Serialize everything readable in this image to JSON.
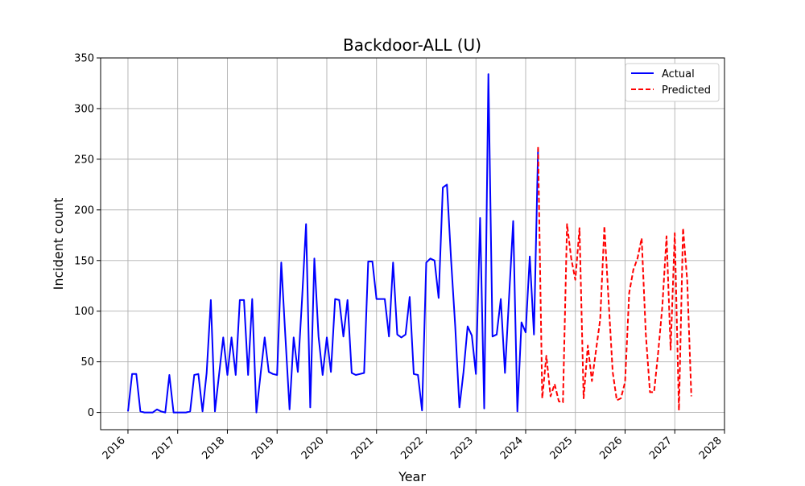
{
  "chart_data": {
    "type": "line",
    "title": "Backdoor-ALL (U)",
    "xlabel": "Year",
    "ylabel": "Incident count",
    "xlim": [
      2015.45,
      2028.0
    ],
    "ylim": [
      -17,
      350
    ],
    "x_ticks": [
      2016,
      2017,
      2018,
      2019,
      2020,
      2021,
      2022,
      2023,
      2024,
      2025,
      2026,
      2027,
      2028
    ],
    "x_tick_labels": [
      "2016",
      "2017",
      "2018",
      "2019",
      "2020",
      "2021",
      "2022",
      "2023",
      "2024",
      "2025",
      "2026",
      "2027",
      "2028"
    ],
    "y_ticks": [
      0,
      50,
      100,
      150,
      200,
      250,
      300,
      350
    ],
    "y_tick_labels": [
      "0",
      "50",
      "100",
      "150",
      "200",
      "250",
      "300",
      "350"
    ],
    "grid": true,
    "legend_position": "top-right",
    "series": [
      {
        "name": "Actual",
        "color": "#0000ff",
        "style": "solid",
        "points": [
          [
            "2016-01",
            1
          ],
          [
            "2016-02",
            38
          ],
          [
            "2016-03",
            38
          ],
          [
            "2016-04",
            1
          ],
          [
            "2016-05",
            0
          ],
          [
            "2016-06",
            0
          ],
          [
            "2016-07",
            0
          ],
          [
            "2016-08",
            3
          ],
          [
            "2016-09",
            1
          ],
          [
            "2016-10",
            0
          ],
          [
            "2016-11",
            37
          ],
          [
            "2016-12",
            0
          ],
          [
            "2017-01",
            0
          ],
          [
            "2017-02",
            0
          ],
          [
            "2017-03",
            0
          ],
          [
            "2017-04",
            1
          ],
          [
            "2017-05",
            37
          ],
          [
            "2017-06",
            38
          ],
          [
            "2017-07",
            1
          ],
          [
            "2017-08",
            39
          ],
          [
            "2017-09",
            111
          ],
          [
            "2017-10",
            1
          ],
          [
            "2017-11",
            38
          ],
          [
            "2017-12",
            74
          ],
          [
            "2018-01",
            37
          ],
          [
            "2018-02",
            74
          ],
          [
            "2018-03",
            37
          ],
          [
            "2018-04",
            111
          ],
          [
            "2018-05",
            111
          ],
          [
            "2018-06",
            37
          ],
          [
            "2018-07",
            112
          ],
          [
            "2018-08",
            0
          ],
          [
            "2018-09",
            37
          ],
          [
            "2018-10",
            74
          ],
          [
            "2018-11",
            40
          ],
          [
            "2018-12",
            38
          ],
          [
            "2019-01",
            37
          ],
          [
            "2019-02",
            148
          ],
          [
            "2019-03",
            75
          ],
          [
            "2019-04",
            3
          ],
          [
            "2019-05",
            74
          ],
          [
            "2019-06",
            40
          ],
          [
            "2019-07",
            110
          ],
          [
            "2019-08",
            186
          ],
          [
            "2019-09",
            5
          ],
          [
            "2019-10",
            152
          ],
          [
            "2019-11",
            75
          ],
          [
            "2019-12",
            37
          ],
          [
            "2020-01",
            74
          ],
          [
            "2020-02",
            40
          ],
          [
            "2020-03",
            112
          ],
          [
            "2020-04",
            111
          ],
          [
            "2020-05",
            75
          ],
          [
            "2020-06",
            111
          ],
          [
            "2020-07",
            39
          ],
          [
            "2020-08",
            37
          ],
          [
            "2020-09",
            38
          ],
          [
            "2020-10",
            39
          ],
          [
            "2020-11",
            149
          ],
          [
            "2020-12",
            149
          ],
          [
            "2021-01",
            112
          ],
          [
            "2021-02",
            112
          ],
          [
            "2021-03",
            112
          ],
          [
            "2021-04",
            75
          ],
          [
            "2021-05",
            148
          ],
          [
            "2021-06",
            77
          ],
          [
            "2021-07",
            74
          ],
          [
            "2021-08",
            77
          ],
          [
            "2021-09",
            114
          ],
          [
            "2021-10",
            38
          ],
          [
            "2021-11",
            37
          ],
          [
            "2021-12",
            2
          ],
          [
            "2022-01",
            148
          ],
          [
            "2022-02",
            152
          ],
          [
            "2022-03",
            150
          ],
          [
            "2022-04",
            113
          ],
          [
            "2022-05",
            222
          ],
          [
            "2022-06",
            225
          ],
          [
            "2022-07",
            150
          ],
          [
            "2022-08",
            85
          ],
          [
            "2022-09",
            5
          ],
          [
            "2022-10",
            40
          ],
          [
            "2022-11",
            85
          ],
          [
            "2022-12",
            76
          ],
          [
            "2023-01",
            38
          ],
          [
            "2023-02",
            192
          ],
          [
            "2023-03",
            4
          ],
          [
            "2023-04",
            334
          ],
          [
            "2023-05",
            75
          ],
          [
            "2023-06",
            77
          ],
          [
            "2023-07",
            112
          ],
          [
            "2023-08",
            39
          ],
          [
            "2023-09",
            114
          ],
          [
            "2023-10",
            189
          ],
          [
            "2023-11",
            1
          ],
          [
            "2023-12",
            89
          ],
          [
            "2024-01",
            79
          ],
          [
            "2024-02",
            154
          ],
          [
            "2024-03",
            77
          ],
          [
            "2024-04",
            260
          ]
        ]
      },
      {
        "name": "Predicted",
        "color": "#ff0000",
        "style": "dashed",
        "points": [
          [
            "2024-04",
            262
          ],
          [
            "2024-05",
            14
          ],
          [
            "2024-06",
            56
          ],
          [
            "2024-07",
            16
          ],
          [
            "2024-08",
            28
          ],
          [
            "2024-09",
            11
          ],
          [
            "2024-10",
            10
          ],
          [
            "2024-11",
            186
          ],
          [
            "2024-12",
            152
          ],
          [
            "2025-01",
            131
          ],
          [
            "2025-02",
            182
          ],
          [
            "2025-03",
            14
          ],
          [
            "2025-04",
            66
          ],
          [
            "2025-05",
            31
          ],
          [
            "2025-06",
            62
          ],
          [
            "2025-07",
            92
          ],
          [
            "2025-08",
            184
          ],
          [
            "2025-09",
            112
          ],
          [
            "2025-10",
            40
          ],
          [
            "2025-11",
            12
          ],
          [
            "2025-12",
            14
          ],
          [
            "2026-01",
            30
          ],
          [
            "2026-02",
            118
          ],
          [
            "2026-03",
            141
          ],
          [
            "2026-04",
            152
          ],
          [
            "2026-05",
            172
          ],
          [
            "2026-06",
            78
          ],
          [
            "2026-07",
            20
          ],
          [
            "2026-08",
            20
          ],
          [
            "2026-09",
            60
          ],
          [
            "2026-10",
            105
          ],
          [
            "2026-11",
            174
          ],
          [
            "2026-12",
            62
          ],
          [
            "2027-01",
            177
          ],
          [
            "2027-02",
            2
          ],
          [
            "2027-03",
            182
          ],
          [
            "2027-04",
            130
          ],
          [
            "2027-05",
            16
          ]
        ]
      }
    ]
  }
}
